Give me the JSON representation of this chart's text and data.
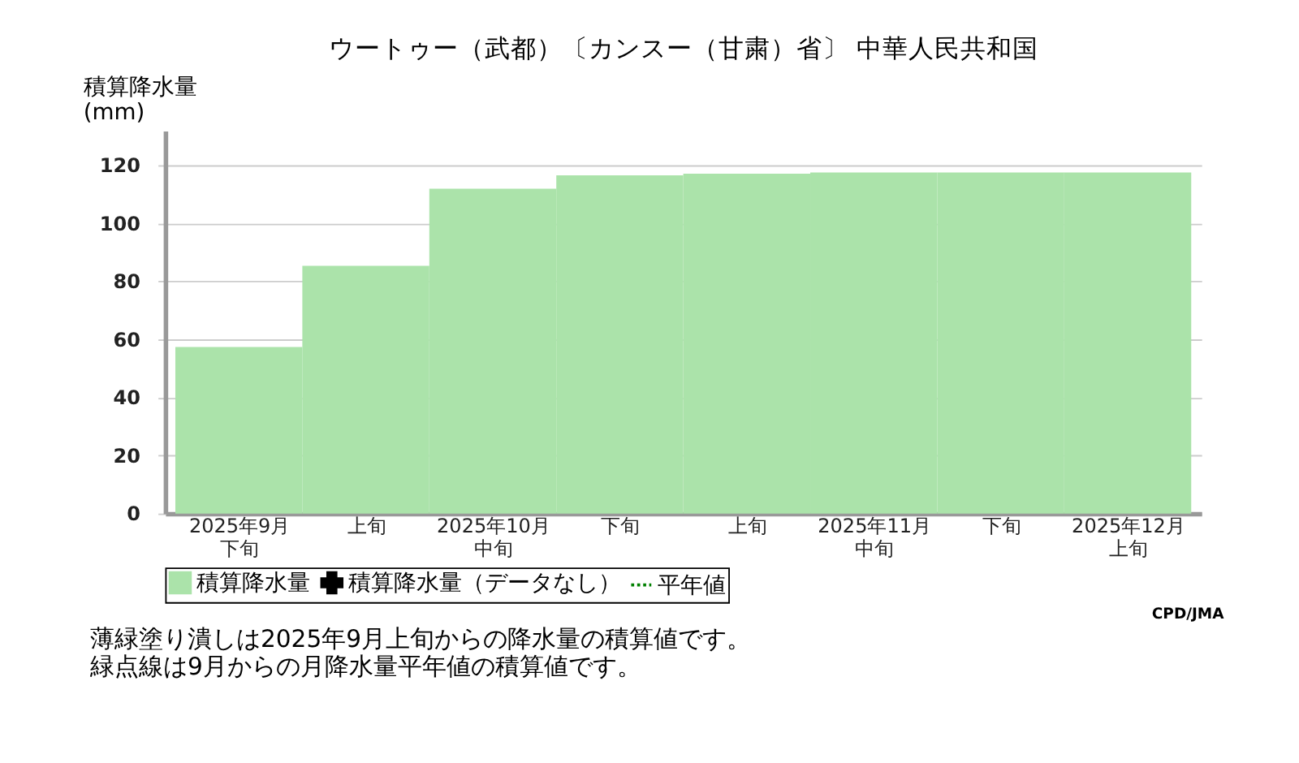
{
  "chart_data": {
    "type": "bar",
    "title": "ウートゥー（武都）〔カンスー（甘粛）省〕 中華人民共和国",
    "ylabel": "積算降水量(mm)",
    "categories": [
      "2025年9月下旬",
      "上旬",
      "2025年10月中旬",
      "下旬",
      "上旬",
      "2025年11月中旬",
      "下旬",
      "2025年12月上旬"
    ],
    "series": [
      {
        "name": "積算降水量",
        "color": "#abe3aa",
        "values": [
          57.4,
          85.4,
          112,
          116.6,
          117.2,
          117.6,
          117.6,
          117.6
        ]
      },
      {
        "name": "積算降水量（データなし）",
        "type": "scatter",
        "marker": "cross",
        "color": "#000000",
        "values": [
          null,
          null,
          null,
          null,
          null,
          null,
          null,
          null
        ]
      },
      {
        "name": "平年値",
        "type": "line",
        "line_style": "dotted",
        "color": "#008000",
        "values": [
          null,
          null,
          null,
          null,
          null,
          null,
          null,
          null
        ]
      }
    ],
    "ylim": [
      0,
      132
    ],
    "yticks": [
      0,
      20,
      40,
      60,
      80,
      100,
      120
    ],
    "grid": "y",
    "legend": "bottom",
    "annotations": [
      "CPD/JMA",
      "薄緑塗り潰しは2025年9月上旬からの降水量の積算値です。",
      "緑点線は9月からの月降水量平年値の積算値です。"
    ]
  }
}
